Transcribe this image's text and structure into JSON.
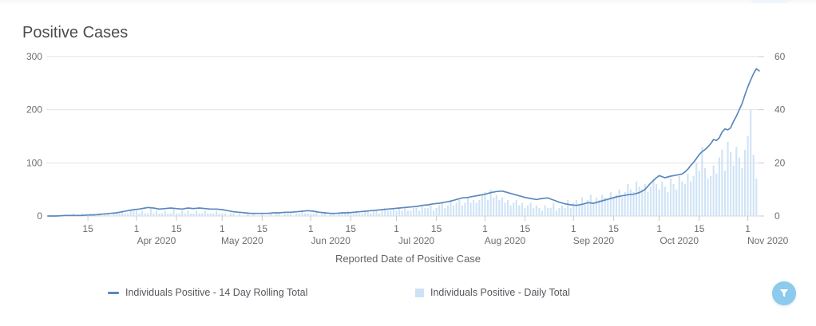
{
  "title": "Positive Cases",
  "x_axis_title": "Reported Date of Positive Case",
  "legend": {
    "items": [
      {
        "label": "Individuals Positive - 14 Day Rolling Total",
        "marker": "line-dash",
        "color": "#5b89bd"
      },
      {
        "label": "Individuals Positive - Daily Total",
        "marker": "square",
        "color": "#cde2f5"
      }
    ]
  },
  "filter_button": {
    "icon": "funnel",
    "color": "#8ccaee"
  },
  "colors": {
    "line": "#5b89bd",
    "bar": "#cfe3f6",
    "grid": "#e2e2e2",
    "baseline": "#d8d8d8",
    "tick": "#cbcbcb",
    "tick_text": "#6e6e6e"
  },
  "chart_data": {
    "type": "line+bar",
    "title": "Positive Cases",
    "xlabel": "Reported Date of Positive Case",
    "x_start_date": "2020-03-01",
    "x_unit": "days since Mar 1 2020",
    "left_axis": {
      "ticks": [
        0,
        100,
        200,
        300
      ],
      "ylim": [
        0,
        300
      ]
    },
    "right_axis": {
      "ticks": [
        0,
        20,
        40,
        60
      ],
      "ylim": [
        0,
        60
      ]
    },
    "grid": "horizontal-only",
    "legend_position": "bottom",
    "x_ticks": [
      {
        "day": 14,
        "label": "15"
      },
      {
        "day": 31,
        "label": "1",
        "month": "Apr 2020"
      },
      {
        "day": 45,
        "label": "15"
      },
      {
        "day": 61,
        "label": "1",
        "month": "May 2020"
      },
      {
        "day": 75,
        "label": "15"
      },
      {
        "day": 92,
        "label": "1",
        "month": "Jun 2020"
      },
      {
        "day": 106,
        "label": "15"
      },
      {
        "day": 122,
        "label": "1",
        "month": "Jul 2020"
      },
      {
        "day": 136,
        "label": "15"
      },
      {
        "day": 153,
        "label": "1",
        "month": "Aug 2020"
      },
      {
        "day": 167,
        "label": "15"
      },
      {
        "day": 184,
        "label": "1",
        "month": "Sep 2020"
      },
      {
        "day": 198,
        "label": "15"
      },
      {
        "day": 214,
        "label": "1",
        "month": "Oct 2020"
      },
      {
        "day": 228,
        "label": "15"
      },
      {
        "day": 245,
        "label": "1",
        "month": "Nov 2020"
      }
    ],
    "series": [
      {
        "name": "Individuals Positive - 14 Day Rolling Total",
        "type": "line",
        "axis": "left",
        "points": [
          [
            0,
            0
          ],
          [
            3,
            0
          ],
          [
            6,
            1
          ],
          [
            9,
            1
          ],
          [
            12,
            1
          ],
          [
            14,
            2
          ],
          [
            16,
            2
          ],
          [
            18,
            3
          ],
          [
            20,
            4
          ],
          [
            22,
            5
          ],
          [
            24,
            6
          ],
          [
            26,
            8
          ],
          [
            28,
            10
          ],
          [
            30,
            12
          ],
          [
            32,
            13
          ],
          [
            34,
            15
          ],
          [
            35,
            16
          ],
          [
            37,
            15
          ],
          [
            39,
            13
          ],
          [
            41,
            14
          ],
          [
            43,
            15
          ],
          [
            45,
            14
          ],
          [
            47,
            13
          ],
          [
            49,
            15
          ],
          [
            51,
            14
          ],
          [
            53,
            15
          ],
          [
            55,
            14
          ],
          [
            57,
            13
          ],
          [
            59,
            13
          ],
          [
            61,
            12
          ],
          [
            63,
            10
          ],
          [
            65,
            8
          ],
          [
            67,
            7
          ],
          [
            69,
            6
          ],
          [
            71,
            5
          ],
          [
            73,
            5
          ],
          [
            75,
            5
          ],
          [
            77,
            5
          ],
          [
            79,
            6
          ],
          [
            81,
            6
          ],
          [
            83,
            7
          ],
          [
            85,
            7
          ],
          [
            87,
            8
          ],
          [
            89,
            9
          ],
          [
            91,
            10
          ],
          [
            93,
            9
          ],
          [
            95,
            7
          ],
          [
            97,
            6
          ],
          [
            99,
            5
          ],
          [
            101,
            5
          ],
          [
            103,
            6
          ],
          [
            105,
            6
          ],
          [
            107,
            7
          ],
          [
            109,
            8
          ],
          [
            111,
            9
          ],
          [
            113,
            10
          ],
          [
            115,
            11
          ],
          [
            117,
            12
          ],
          [
            119,
            13
          ],
          [
            121,
            14
          ],
          [
            123,
            15
          ],
          [
            125,
            16
          ],
          [
            127,
            17
          ],
          [
            129,
            18
          ],
          [
            131,
            20
          ],
          [
            133,
            21
          ],
          [
            135,
            23
          ],
          [
            137,
            24
          ],
          [
            139,
            26
          ],
          [
            141,
            28
          ],
          [
            143,
            31
          ],
          [
            145,
            34
          ],
          [
            147,
            35
          ],
          [
            149,
            37
          ],
          [
            151,
            39
          ],
          [
            153,
            41
          ],
          [
            155,
            44
          ],
          [
            157,
            46
          ],
          [
            159,
            47
          ],
          [
            161,
            44
          ],
          [
            163,
            41
          ],
          [
            165,
            38
          ],
          [
            167,
            35
          ],
          [
            169,
            33
          ],
          [
            171,
            31
          ],
          [
            173,
            33
          ],
          [
            175,
            34
          ],
          [
            177,
            30
          ],
          [
            179,
            26
          ],
          [
            181,
            23
          ],
          [
            183,
            21
          ],
          [
            185,
            20
          ],
          [
            187,
            22
          ],
          [
            189,
            25
          ],
          [
            191,
            24
          ],
          [
            193,
            27
          ],
          [
            195,
            30
          ],
          [
            197,
            33
          ],
          [
            199,
            36
          ],
          [
            201,
            38
          ],
          [
            203,
            40
          ],
          [
            205,
            41
          ],
          [
            207,
            44
          ],
          [
            209,
            50
          ],
          [
            210,
            56
          ],
          [
            211,
            62
          ],
          [
            212,
            67
          ],
          [
            213,
            72
          ],
          [
            214,
            76
          ],
          [
            216,
            72
          ],
          [
            218,
            75
          ],
          [
            220,
            77
          ],
          [
            222,
            79
          ],
          [
            223,
            83
          ],
          [
            224,
            88
          ],
          [
            225,
            95
          ],
          [
            226,
            101
          ],
          [
            227,
            108
          ],
          [
            228,
            116
          ],
          [
            229,
            121
          ],
          [
            230,
            125
          ],
          [
            231,
            130
          ],
          [
            232,
            136
          ],
          [
            233,
            144
          ],
          [
            234,
            142
          ],
          [
            235,
            147
          ],
          [
            236,
            158
          ],
          [
            237,
            164
          ],
          [
            238,
            162
          ],
          [
            239,
            166
          ],
          [
            240,
            178
          ],
          [
            241,
            188
          ],
          [
            242,
            200
          ],
          [
            243,
            212
          ],
          [
            244,
            228
          ],
          [
            245,
            243
          ],
          [
            246,
            256
          ],
          [
            247,
            268
          ],
          [
            248,
            277
          ],
          [
            249,
            273
          ]
        ]
      },
      {
        "name": "Individuals Positive - Daily Total",
        "type": "bar",
        "axis": "right",
        "start_day": 9,
        "values": [
          1,
          0,
          0,
          1,
          0,
          0,
          1,
          1,
          0,
          1,
          0,
          1,
          1,
          0,
          1,
          1,
          1,
          2,
          1,
          1,
          2,
          2,
          2,
          1,
          2,
          1,
          1,
          3,
          1,
          2,
          1,
          1,
          2,
          1,
          1,
          3,
          1,
          1,
          2,
          1,
          2,
          1,
          1,
          2,
          1,
          1,
          2,
          1,
          1,
          1,
          2,
          1,
          1,
          1,
          0,
          1,
          1,
          0,
          1,
          0,
          0,
          1,
          0,
          1,
          0,
          0,
          1,
          0,
          0,
          1,
          0,
          1,
          1,
          0,
          1,
          1,
          1,
          0,
          1,
          1,
          2,
          1,
          1,
          1,
          1,
          2,
          0,
          1,
          1,
          0,
          1,
          1,
          0,
          1,
          1,
          1,
          2,
          1,
          1,
          2,
          1,
          1,
          2,
          2,
          1,
          2,
          2,
          1,
          2,
          3,
          2,
          2,
          3,
          2,
          3,
          2,
          3,
          2,
          2,
          3,
          3,
          2,
          4,
          3,
          3,
          4,
          2,
          3,
          4,
          5,
          3,
          4,
          6,
          4,
          5,
          6,
          4,
          5,
          7,
          5,
          6,
          5,
          6,
          8,
          9,
          6,
          10,
          7,
          8,
          6,
          7,
          5,
          6,
          4,
          5,
          6,
          4,
          5,
          3,
          4,
          5,
          3,
          4,
          3,
          2,
          4,
          3,
          3,
          5,
          2,
          3,
          4,
          3,
          6,
          3,
          5,
          6,
          4,
          7,
          5,
          6,
          8,
          5,
          7,
          6,
          8,
          7,
          6,
          9,
          7,
          8,
          10,
          7,
          9,
          12,
          10,
          9,
          13,
          11,
          10,
          12,
          9,
          11,
          14,
          12,
          10,
          13,
          11,
          9,
          14,
          12,
          10,
          15,
          13,
          12,
          16,
          13,
          15,
          20,
          17,
          26,
          18,
          14,
          15,
          19,
          16,
          22,
          25,
          17,
          28,
          24,
          19,
          26,
          22,
          18,
          25,
          30,
          40,
          23,
          14
        ]
      }
    ]
  }
}
